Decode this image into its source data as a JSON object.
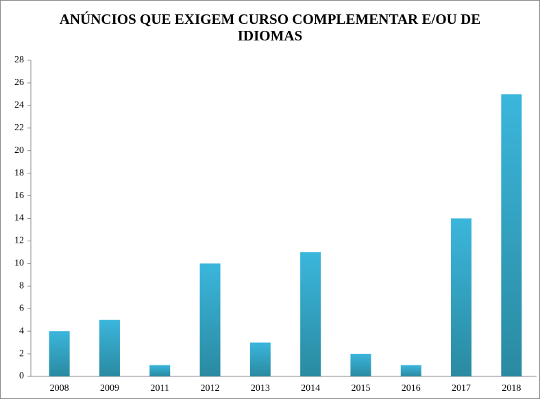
{
  "chart_data": {
    "type": "bar",
    "title": "ANÚNCIOS QUE EXIGEM CURSO COMPLEMENTAR E/OU DE IDIOMAS",
    "categories": [
      "2008",
      "2009",
      "2011",
      "2012",
      "2013",
      "2014",
      "2015",
      "2016",
      "2017",
      "2018"
    ],
    "values": [
      4,
      5,
      1,
      10,
      3,
      11,
      2,
      1,
      14,
      25
    ],
    "color": [
      "#3bb6dc",
      "#2a8aa1"
    ],
    "ylim": [
      0,
      28
    ],
    "yticks": [
      0,
      2,
      4,
      6,
      8,
      10,
      12,
      14,
      16,
      18,
      20,
      22,
      24,
      26,
      28
    ],
    "grid": false
  }
}
